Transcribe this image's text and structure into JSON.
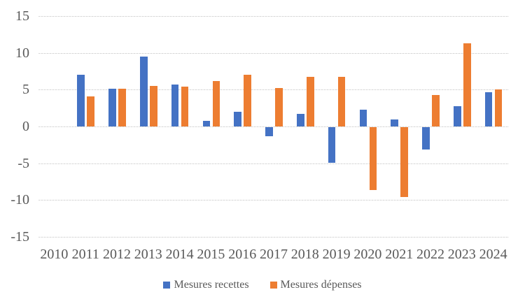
{
  "chart_data": {
    "type": "bar",
    "title": "",
    "xlabel": "",
    "ylabel": "",
    "categories": [
      "2010",
      "2011",
      "2012",
      "2013",
      "2014",
      "2015",
      "2016",
      "2017",
      "2018",
      "2019",
      "2020",
      "2021",
      "2022",
      "2023",
      "2024"
    ],
    "series": [
      {
        "name": "Mesures recettes",
        "color": "#4472C4",
        "values": [
          0,
          7.0,
          5.1,
          9.5,
          5.7,
          0.8,
          2.0,
          -1.2,
          1.7,
          -4.8,
          2.3,
          1.0,
          -3.0,
          2.8,
          4.7
        ]
      },
      {
        "name": "Mesures dépenses",
        "color": "#ED7D31",
        "values": [
          0,
          4.1,
          5.1,
          5.5,
          5.4,
          6.2,
          7.0,
          5.2,
          6.7,
          6.7,
          -8.5,
          -9.5,
          4.3,
          11.3,
          5.0
        ]
      }
    ],
    "ylim": [
      -15,
      15
    ],
    "yticks": [
      15,
      10,
      5,
      0,
      -5,
      -10,
      -15
    ],
    "grid": true,
    "legend_position": "bottom",
    "colors": {
      "axis_text": "#595959",
      "gridline": "#D9D9D9",
      "background": "#FFFFFF"
    }
  }
}
